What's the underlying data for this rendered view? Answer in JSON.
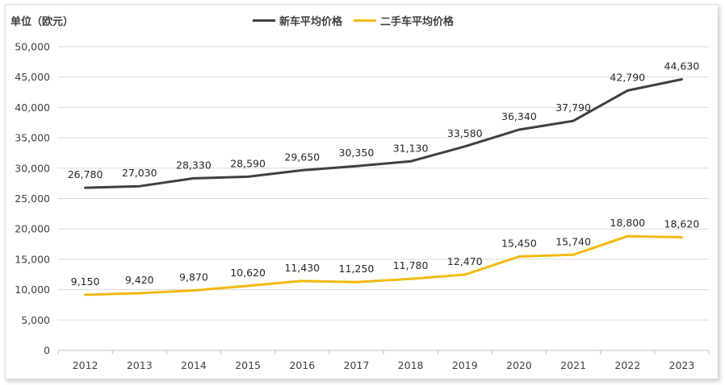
{
  "chart_data": {
    "type": "line",
    "unit_label": "单位（欧元）",
    "categories": [
      "2012",
      "2013",
      "2014",
      "2015",
      "2016",
      "2017",
      "2018",
      "2019",
      "2020",
      "2021",
      "2022",
      "2023"
    ],
    "series": [
      {
        "name": "新车平均价格",
        "color": "#404040",
        "values": [
          26780,
          27030,
          28330,
          28590,
          29650,
          30350,
          31130,
          33580,
          36340,
          37790,
          42790,
          44630
        ],
        "labels": [
          "26,780",
          "27,030",
          "28,330",
          "28,590",
          "29,650",
          "30,350",
          "31,130",
          "33,580",
          "36,340",
          "37,790",
          "42,790",
          "44,630"
        ]
      },
      {
        "name": "二手车平均价格",
        "color": "#f2b90c",
        "values": [
          9150,
          9420,
          9870,
          10620,
          11430,
          11250,
          11780,
          12470,
          15450,
          15740,
          18800,
          18620
        ],
        "labels": [
          "9,150",
          "9,420",
          "9,870",
          "10,620",
          "11,430",
          "11,250",
          "11,780",
          "12,470",
          "15,450",
          "15,740",
          "18,800",
          "18,620"
        ]
      }
    ],
    "ylim": [
      0,
      50000
    ],
    "yticks": [
      0,
      5000,
      10000,
      15000,
      20000,
      25000,
      30000,
      35000,
      40000,
      45000,
      50000
    ],
    "ytick_labels": [
      "0",
      "5,000",
      "10,000",
      "15,000",
      "20,000",
      "25,000",
      "30,000",
      "35,000",
      "40,000",
      "45,000",
      "50,000"
    ],
    "grid": true,
    "legend_position": "top-center"
  }
}
